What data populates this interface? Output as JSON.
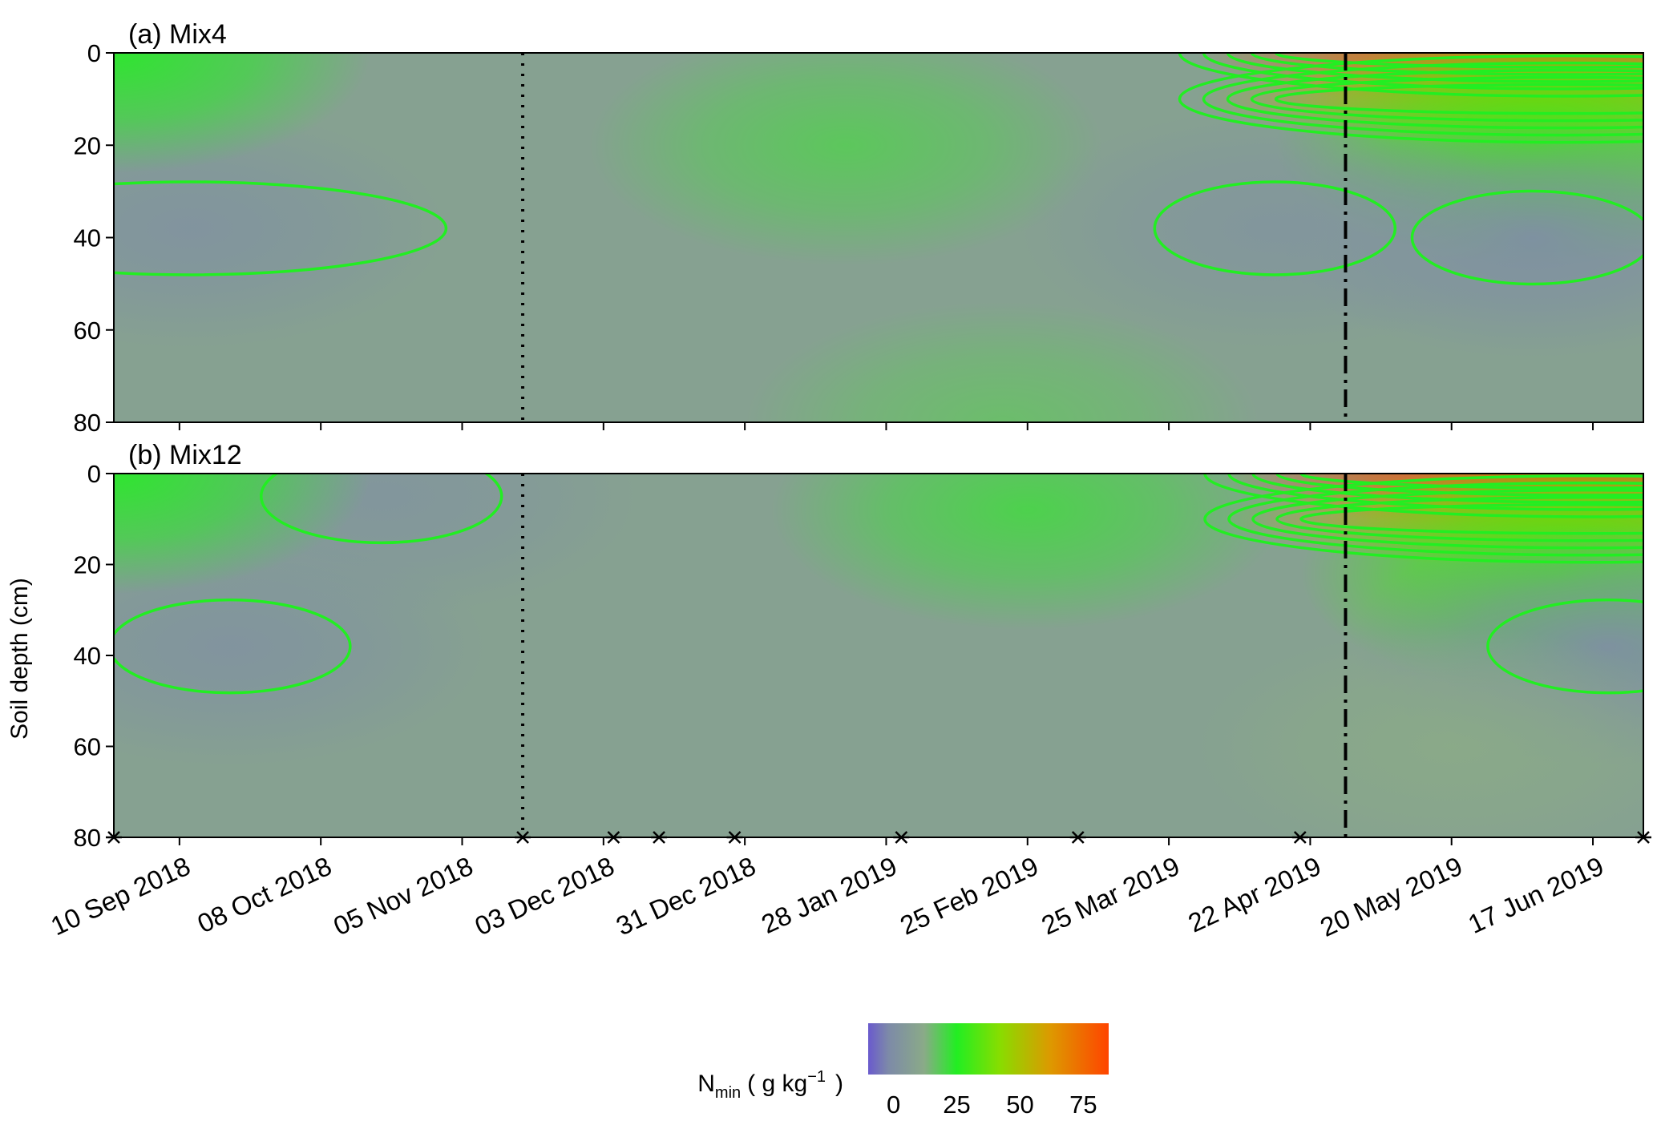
{
  "chart_data": {
    "type": "heatmap",
    "ylabel": "Soil depth (cm)",
    "x_ticks": [
      "10 Sep 2018",
      "08 Oct 2018",
      "05 Nov 2018",
      "03 Dec 2018",
      "31 Dec 2018",
      "28 Jan 2019",
      "25 Feb 2019",
      "25 Mar 2019",
      "22 Apr 2019",
      "20 May 2019",
      "17 Jun 2019"
    ],
    "x_range": [
      "2018-08-28",
      "2019-06-27"
    ],
    "y_ticks": [
      0,
      20,
      40,
      60,
      80
    ],
    "y_range": [
      0,
      80
    ],
    "y_inverted": true,
    "vlines": [
      {
        "date": "2018-11-17",
        "style": "dotted"
      },
      {
        "date": "2019-04-29",
        "style": "dash-dot"
      }
    ],
    "sampling_dates": [
      "2018-08-28",
      "2018-11-17",
      "2018-12-05",
      "2018-12-14",
      "2018-12-29",
      "2019-01-31",
      "2019-03-07",
      "2019-04-20",
      "2019-06-27"
    ],
    "panels": [
      {
        "title": "(a) Mix4",
        "contour_color": "#22ee22",
        "hotspots": [
          {
            "date": "2019-06-05",
            "depth": 0,
            "value": 75
          },
          {
            "date": "2019-06-05",
            "depth": 10,
            "value": 55
          },
          {
            "date": "2019-06-05",
            "depth": 20,
            "value": 30
          },
          {
            "date": "2019-06-05",
            "depth": 40,
            "value": 0
          },
          {
            "date": "2018-09-12",
            "depth": 38,
            "value": 2
          },
          {
            "date": "2019-01-20",
            "depth": 20,
            "value": 18
          },
          {
            "date": "2019-04-15",
            "depth": 38,
            "value": 3
          },
          {
            "date": "2019-02-20",
            "depth": 80,
            "value": 16
          },
          {
            "date": "2018-08-28",
            "depth": 0,
            "value": 24
          }
        ]
      },
      {
        "title": "(b) Mix12",
        "contour_color": "#22ee22",
        "hotspots": [
          {
            "date": "2019-06-10",
            "depth": 0,
            "value": 80
          },
          {
            "date": "2019-06-10",
            "depth": 10,
            "value": 55
          },
          {
            "date": "2019-06-10",
            "depth": 22,
            "value": 30
          },
          {
            "date": "2019-06-20",
            "depth": 38,
            "value": 0
          },
          {
            "date": "2018-09-20",
            "depth": 38,
            "value": 2
          },
          {
            "date": "2018-10-20",
            "depth": 5,
            "value": 3
          },
          {
            "date": "2019-02-25",
            "depth": 8,
            "value": 20
          },
          {
            "date": "2019-05-20",
            "depth": 60,
            "value": 12
          },
          {
            "date": "2018-08-28",
            "depth": 0,
            "value": 24
          }
        ]
      }
    ],
    "colorbar": {
      "label": "N",
      "label_sub": "min",
      "label_unit": "( g kg",
      "label_sup": "−1",
      "label_close": ")",
      "ticks": [
        0,
        25,
        50,
        75
      ],
      "range": [
        -10,
        85
      ],
      "colors": [
        "#6a5acd",
        "#7d8aa8",
        "#8aaa88",
        "#22ee22",
        "#88dd00",
        "#dd9900",
        "#ff4400"
      ]
    }
  }
}
